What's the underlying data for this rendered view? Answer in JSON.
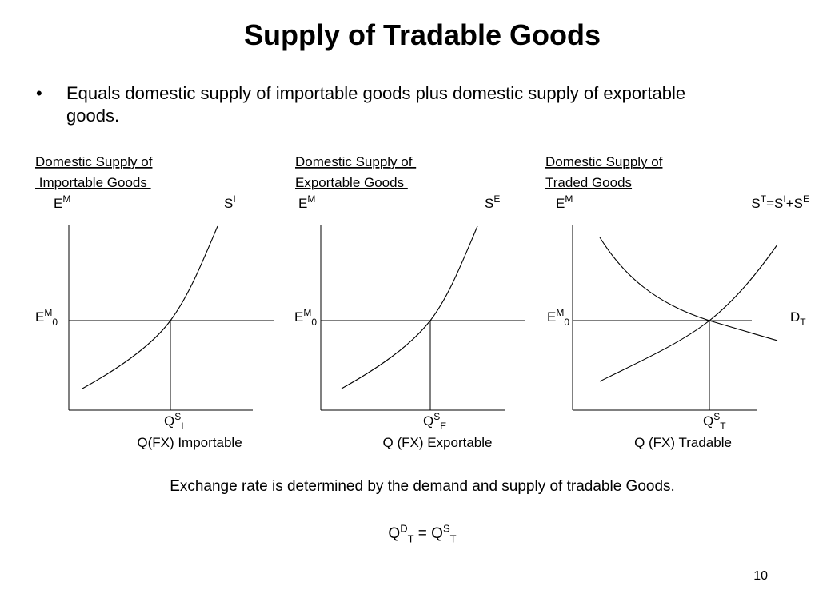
{
  "title": "Supply of Tradable Goods",
  "bullet": [
    "Equals domestic supply of importable goods plus domestic supply of exportable",
    "goods."
  ],
  "panels": [
    {
      "heading": [
        "Domestic Supply of",
        " Importable Goods "
      ],
      "y_axis": [
        {
          "t": "E"
        },
        {
          "t": "M",
          "pos": "sup"
        }
      ],
      "curve_labels": [
        [
          {
            "t": "S"
          },
          {
            "t": "I",
            "pos": "sup"
          }
        ]
      ],
      "eq_label": [
        {
          "t": "E"
        },
        {
          "t": "M",
          "pos": "sup"
        },
        {
          "t": "0",
          "pos": "sub"
        }
      ],
      "q_label": [
        {
          "t": "Q"
        },
        {
          "t": "S",
          "pos": "sup"
        },
        {
          "t": "I",
          "pos": "sub"
        }
      ],
      "x_axis": "Q(FX) Importable"
    },
    {
      "heading": [
        "Domestic Supply of ",
        "Exportable Goods "
      ],
      "y_axis": [
        {
          "t": "E"
        },
        {
          "t": "M",
          "pos": "sup"
        }
      ],
      "curve_labels": [
        [
          {
            "t": "S"
          },
          {
            "t": "E",
            "pos": "sup"
          }
        ]
      ],
      "eq_label": [
        {
          "t": "E"
        },
        {
          "t": "M",
          "pos": "sup"
        },
        {
          "t": "0",
          "pos": "sub"
        }
      ],
      "q_label": [
        {
          "t": "Q"
        },
        {
          "t": "S",
          "pos": "sup"
        },
        {
          "t": "E",
          "pos": "sub"
        }
      ],
      "x_axis": "Q (FX) Exportable"
    },
    {
      "heading": [
        "Domestic Supply of",
        "Traded Goods"
      ],
      "y_axis": [
        {
          "t": "E"
        },
        {
          "t": "M",
          "pos": "sup"
        }
      ],
      "curve_labels": [
        [
          {
            "t": "S"
          },
          {
            "t": "T",
            "pos": "sup"
          },
          {
            "t": "=S"
          },
          {
            "t": "I",
            "pos": "sup"
          },
          {
            "t": "+S"
          },
          {
            "t": "E",
            "pos": "sup"
          }
        ],
        [
          {
            "t": "D"
          },
          {
            "t": "T",
            "pos": "sub"
          }
        ]
      ],
      "eq_label": [
        {
          "t": "E"
        },
        {
          "t": "M",
          "pos": "sup"
        },
        {
          "t": "0",
          "pos": "sub"
        }
      ],
      "q_label": [
        {
          "t": "Q"
        },
        {
          "t": "S",
          "pos": "sup"
        },
        {
          "t": "T",
          "pos": "sub"
        }
      ],
      "x_axis": "Q (FX) Tradable"
    }
  ],
  "conclusion": "Exchange rate is determined by the demand and supply of tradable Goods.",
  "equation": [
    {
      "t": "Q"
    },
    {
      "t": "D",
      "pos": "sup"
    },
    {
      "t": "T",
      "pos": "sub"
    },
    {
      "t": " = Q"
    },
    {
      "t": "S",
      "pos": "sup"
    },
    {
      "t": "T",
      "pos": "sub"
    }
  ],
  "page_number": "10"
}
